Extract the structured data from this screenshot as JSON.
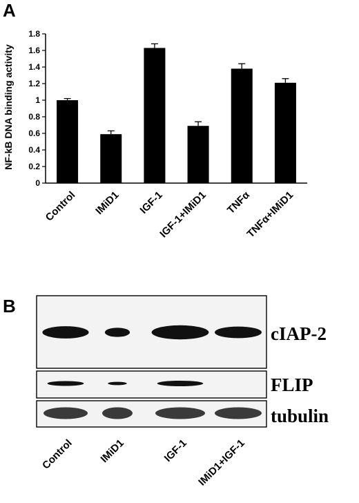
{
  "panels": {
    "a_letter": "A",
    "b_letter": "B"
  },
  "chart_data": {
    "type": "bar",
    "title": "",
    "xlabel": "",
    "ylabel": "NF-kB DNA binding activity",
    "categories": [
      "Control",
      "IMiD1",
      "IGF-1",
      "IGF-1+IMiD1",
      "TNFα",
      "TNFα+IMiD1"
    ],
    "values": [
      1.0,
      0.59,
      1.63,
      0.69,
      1.38,
      1.21
    ],
    "errors": [
      0.02,
      0.04,
      0.05,
      0.05,
      0.06,
      0.05
    ],
    "ylim": [
      0,
      1.8
    ],
    "yticks": [
      0,
      0.2,
      0.4,
      0.6,
      0.8,
      1,
      1.2,
      1.4,
      1.6,
      1.8
    ],
    "ytick_labels": [
      "0",
      "0.2",
      "0.4",
      "0.6",
      "0.8",
      "1",
      "1.2",
      "1.4",
      "1.6",
      "1.8"
    ],
    "bar_color": "#000000",
    "grid": false,
    "legend": "none"
  },
  "blot": {
    "rows": [
      {
        "label": "cIAP-2",
        "intensities": [
          1.0,
          0.55,
          1.25,
          0.9
        ]
      },
      {
        "label": "FLIP",
        "intensities": [
          0.55,
          0.15,
          0.75,
          0.0
        ]
      },
      {
        "label": "tubulin",
        "intensities": [
          1.0,
          1.0,
          1.0,
          1.0
        ]
      }
    ],
    "lanes": [
      "Control",
      "IMiD1",
      "IGF-1",
      "IMiD1+IGF-1"
    ]
  }
}
